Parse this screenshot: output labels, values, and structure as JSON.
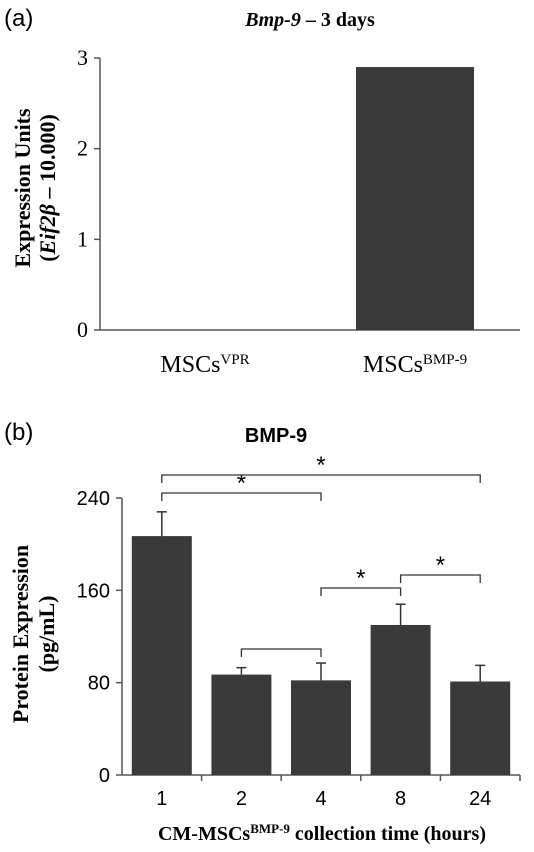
{
  "panels": {
    "a": {
      "label": "(a)"
    },
    "b": {
      "label": "(b)"
    }
  },
  "chart_data": [
    {
      "type": "bar",
      "title_italic": "Bmp-9",
      "title_rest": " – 3 days",
      "ylabel_line1": "Expression Units",
      "ylabel_line2_italic": "Eif2β",
      "ylabel_line2_rest": " – 10.000)",
      "ylabel_line2_open": "(",
      "ylim": [
        0,
        3
      ],
      "yticks": [
        0,
        1,
        2,
        3
      ],
      "categories": [
        {
          "base": "MSCs",
          "sup": "VPR"
        },
        {
          "base": "MSCs",
          "sup": "BMP-9"
        }
      ],
      "values": [
        0,
        2.9
      ],
      "bar_color": "#3a3a3a",
      "grid": false
    },
    {
      "type": "bar",
      "title": "BMP-9",
      "ylabel_line1": "Protein Expression",
      "ylabel_line2": "(pg/mL)",
      "xlabel_base": "CM-MSCs",
      "xlabel_sup": "BMP-9",
      "xlabel_rest": " collection time (hours)",
      "ylim": [
        0,
        240
      ],
      "yticks": [
        0,
        80,
        160,
        240
      ],
      "categories": [
        "1",
        "2",
        "4",
        "8",
        "24"
      ],
      "values": [
        207,
        87,
        82,
        130,
        81
      ],
      "errors": [
        21,
        6,
        15,
        18,
        14
      ],
      "bar_color": "#3a3a3a",
      "grid": false,
      "comparisons": [
        {
          "from": 0,
          "to": 2,
          "label": "*"
        },
        {
          "from": 0,
          "to": 4,
          "label": "*"
        },
        {
          "from": 1,
          "to": 2,
          "label": ""
        },
        {
          "from": 2,
          "to": 3,
          "label": "*"
        },
        {
          "from": 3,
          "to": 4,
          "label": "*"
        }
      ]
    }
  ]
}
